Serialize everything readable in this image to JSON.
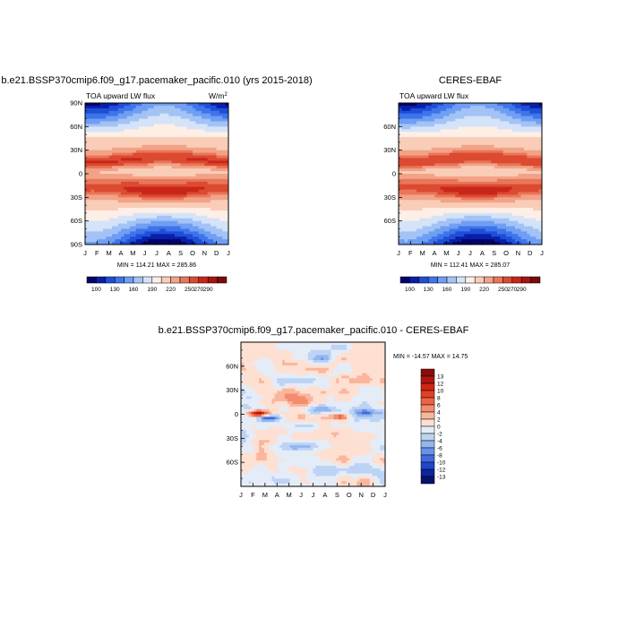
{
  "chart_data": [
    {
      "type": "heatmap",
      "title": "b.e21.BSSP370cmip6.f09_g17.pacemaker_pacific.010 (yrs 2015-2018)",
      "subtitle": "TOA upward LW flux",
      "units": "W/m",
      "units_sup": "2",
      "x_ticks": [
        "J",
        "F",
        "M",
        "A",
        "M",
        "J",
        "J",
        "A",
        "S",
        "O",
        "N",
        "D",
        "J"
      ],
      "y_ticks": [
        "90N",
        "60N",
        "30N",
        "0",
        "30S",
        "60S",
        "90S"
      ],
      "ylim": [
        -90,
        90
      ],
      "stats": "MIN = 114.21  MAX = 285.86",
      "colorbar_labels": [
        "100",
        "130",
        "160",
        "190",
        "220",
        "250",
        "270",
        "290"
      ],
      "colorbar_colors": [
        "#05036b",
        "#0a1fa8",
        "#1f4fd8",
        "#3f74ea",
        "#6f9ef3",
        "#a3c3f6",
        "#d4e3f8",
        "#fdeee6",
        "#f9cdb8",
        "#f2a387",
        "#e9765a",
        "#dc4a31",
        "#c9261a",
        "#a81410",
        "#7a0a08"
      ],
      "min": 114.21,
      "max": 285.86
    },
    {
      "type": "heatmap",
      "title": "CERES-EBAF",
      "subtitle": "TOA upward LW flux",
      "x_ticks": [
        "J",
        "F",
        "M",
        "A",
        "M",
        "J",
        "J",
        "A",
        "S",
        "O",
        "N",
        "D",
        "J"
      ],
      "y_ticks": [
        "60N",
        "30N",
        "0",
        "30S",
        "60S"
      ],
      "ylim": [
        -90,
        90
      ],
      "stats": "MIN = 112.41  MAX = 285.07",
      "colorbar_labels": [
        "100",
        "130",
        "160",
        "190",
        "220",
        "250",
        "270",
        "290"
      ],
      "min": 112.41,
      "max": 285.07
    },
    {
      "type": "heatmap",
      "title": "b.e21.BSSP370cmip6.f09_g17.pacemaker_pacific.010 - CERES-EBAF",
      "x_ticks": [
        "J",
        "F",
        "M",
        "A",
        "M",
        "J",
        "J",
        "A",
        "S",
        "O",
        "N",
        "D",
        "J"
      ],
      "y_ticks": [
        "60N",
        "30N",
        "0",
        "30S",
        "60S"
      ],
      "ylim": [
        -90,
        90
      ],
      "stats": "MIN = -14.57  MAX =  14.75",
      "colorbar_labels": [
        "13",
        "12",
        "10",
        "8",
        "6",
        "4",
        "2",
        "0",
        "-2",
        "-4",
        "-6",
        "-8",
        "-10",
        "-12",
        "-13"
      ],
      "colorbar_colors": [
        "#8c0a0a",
        "#b2140f",
        "#cf2616",
        "#e34026",
        "#ee6343",
        "#f48c6e",
        "#f9b69d",
        "#fde0d2",
        "#e4ecf8",
        "#bdd3f4",
        "#93b6ef",
        "#6a92e8",
        "#416adf",
        "#2146c8",
        "#0c249e",
        "#06126e"
      ],
      "min": -14.57,
      "max": 14.75
    }
  ]
}
